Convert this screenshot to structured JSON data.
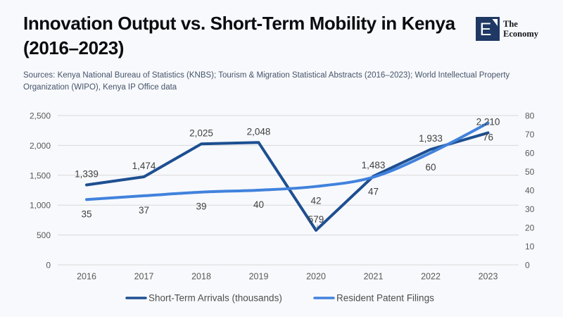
{
  "header": {
    "title": "Innovation Output vs. Short-Term Mobility in Kenya (2016–2023)",
    "sources": "Sources: Kenya National Bureau of Statistics (KNBS); Tourism & Migration Statistical Abstracts (2016–2023); World Intellectual Property Organization (WIPO), Kenya IP Office data",
    "logo": {
      "letter": "E",
      "name_line1": "The",
      "name_line2": "Economy"
    }
  },
  "chart_data": {
    "type": "line",
    "x": [
      2016,
      2017,
      2018,
      2019,
      2020,
      2021,
      2022,
      2023
    ],
    "series": [
      {
        "name": "Short-Term Arrivals (thousands)",
        "axis": "left",
        "color": "#1d4f91",
        "smooth": false,
        "values": [
          1339,
          1474,
          2025,
          2048,
          579,
          1483,
          1933,
          2210
        ]
      },
      {
        "name": "Resident Patent Filings",
        "axis": "right",
        "color": "#4182dd",
        "smooth": true,
        "values": [
          35,
          37,
          39,
          40,
          42,
          47,
          60,
          76
        ]
      }
    ],
    "left_axis": {
      "min": 0,
      "max": 2500,
      "step": 500
    },
    "right_axis": {
      "min": 0,
      "max": 80,
      "step": 10
    },
    "grid": true,
    "data_labels": true,
    "legend_position": "bottom"
  },
  "colors": {
    "background": "#f8f9fc",
    "navy_series": "#1d4f91",
    "blue_series": "#4182dd",
    "grid": "#d9d9d9",
    "axis_text": "#595959",
    "data_label_text": "#404040",
    "legend_text": "#4e4e4e",
    "leader_line": "#a6a6a6",
    "logo_navy": "#1f3864",
    "title_text": "#0b0c0f",
    "sources_text": "#44546a"
  }
}
